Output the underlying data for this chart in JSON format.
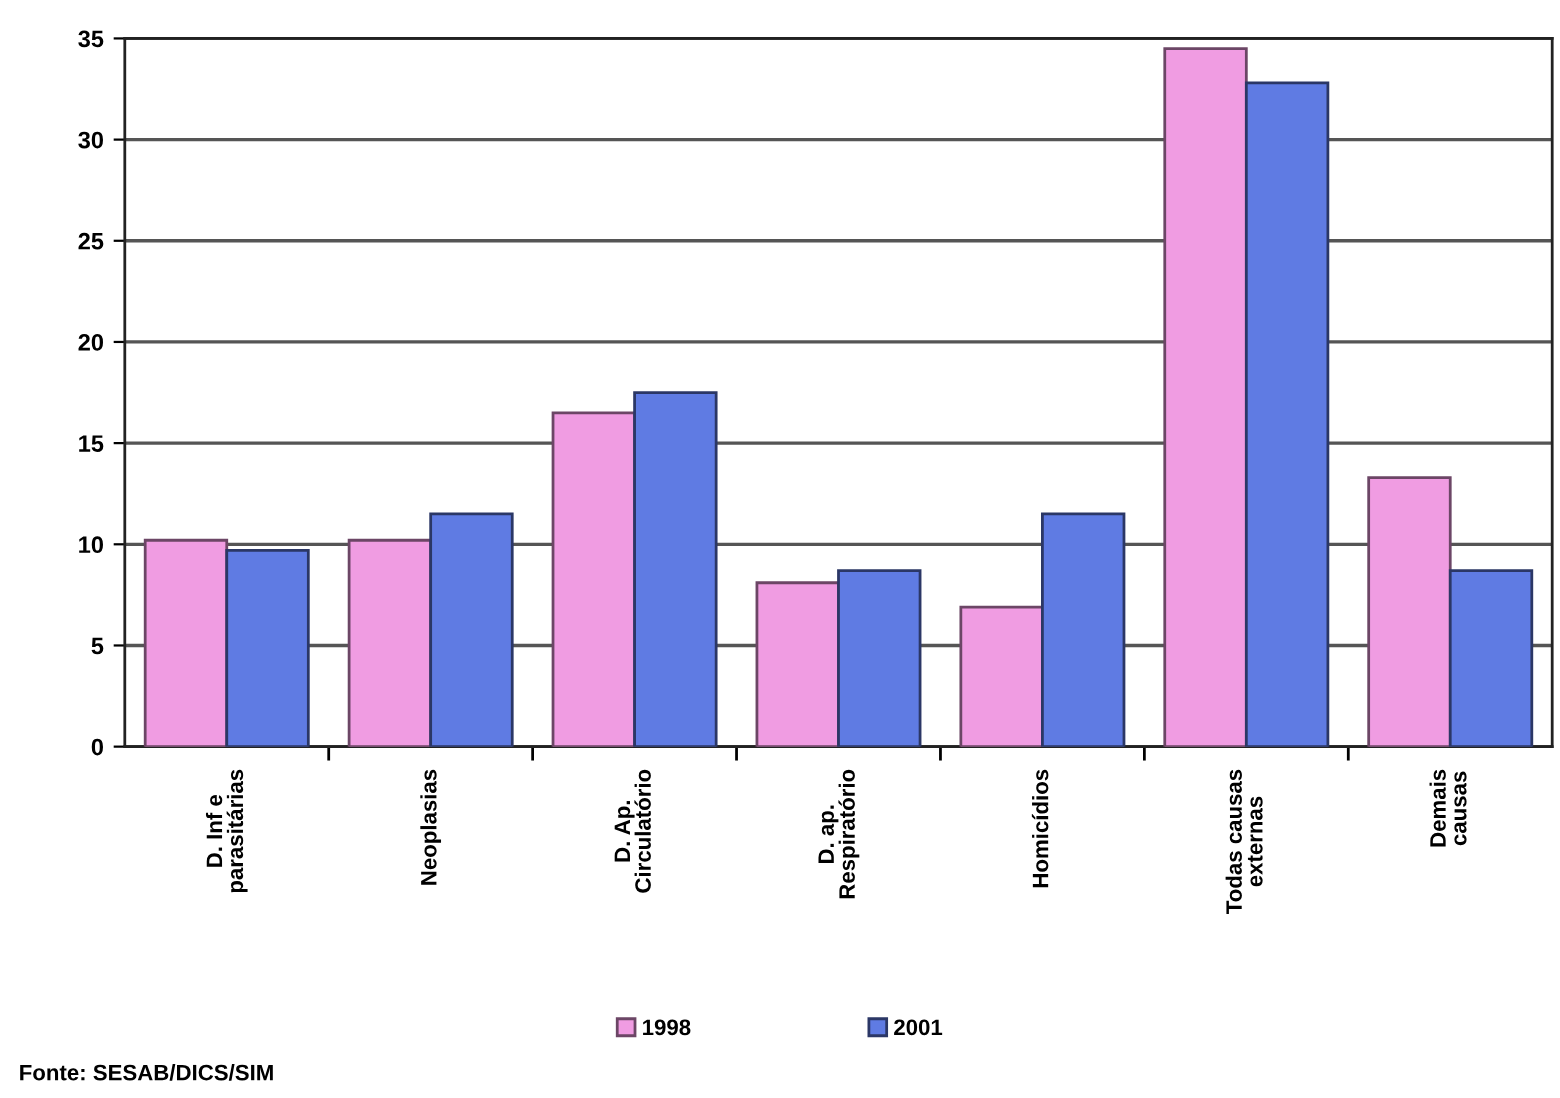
{
  "chart_data": {
    "type": "bar",
    "categories": [
      "D. Inf e\nparasitárias",
      "Neoplasias",
      "D. Ap.\nCirculatório",
      "D. ap.\nRespiratório",
      "Homicídios",
      "Todas causas\nexternas",
      "Demais\ncausas"
    ],
    "series": [
      {
        "name": "1998",
        "color": "#f09ce2",
        "values": [
          10.2,
          10.2,
          16.5,
          8.1,
          6.9,
          34.5,
          13.3
        ]
      },
      {
        "name": "2001",
        "color": "#5f7be3",
        "values": [
          9.7,
          11.5,
          17.5,
          8.7,
          11.5,
          32.8,
          8.7
        ]
      }
    ],
    "ylim": [
      0,
      35
    ],
    "yticks": [
      0,
      5,
      10,
      15,
      20,
      25,
      30,
      35
    ],
    "grid": "y",
    "legend": "bottom",
    "annotations": [
      "Fonte: SESAB/DICS/SIM"
    ]
  }
}
